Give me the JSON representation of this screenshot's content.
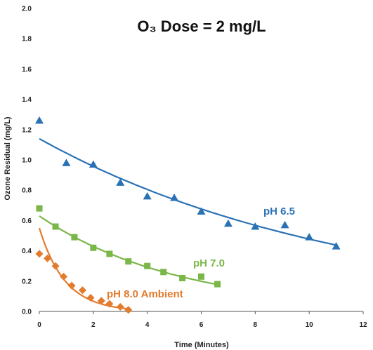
{
  "chart_data": {
    "type": "scatter",
    "title": "O₃ Dose = 2 mg/L",
    "xlabel": "Time (Minutes)",
    "ylabel": "Ozone Residual (mg/L)",
    "xlim": [
      0,
      12
    ],
    "ylim": [
      0,
      2.0
    ],
    "xticks": [
      "0",
      "2",
      "4",
      "6",
      "8",
      "10",
      "12"
    ],
    "yticks": [
      "0.0",
      "0.2",
      "0.4",
      "0.6",
      "0.8",
      "1.0",
      "1.2",
      "1.4",
      "1.6",
      "1.8",
      "2.0"
    ],
    "grid": false,
    "legend": "inline labels",
    "series": [
      {
        "name": "pH 6.5",
        "color": "#2a72b5",
        "marker": "triangle",
        "points": [
          [
            0,
            1.26
          ],
          [
            1,
            0.98
          ],
          [
            2,
            0.97
          ],
          [
            3,
            0.85
          ],
          [
            4,
            0.76
          ],
          [
            5,
            0.75
          ],
          [
            6,
            0.66
          ],
          [
            7,
            0.58
          ],
          [
            8,
            0.56
          ],
          [
            9.1,
            0.57
          ],
          [
            10,
            0.49
          ],
          [
            11,
            0.43
          ]
        ],
        "fit": {
          "model": "exponential",
          "start": 1.14,
          "rate": 0.087,
          "x_from": 0,
          "x_to": 11
        }
      },
      {
        "name": "pH 7.0",
        "color": "#7ab648",
        "marker": "square",
        "points": [
          [
            0,
            0.68
          ],
          [
            0.6,
            0.56
          ],
          [
            1.3,
            0.49
          ],
          [
            2,
            0.42
          ],
          [
            2.6,
            0.38
          ],
          [
            3.3,
            0.33
          ],
          [
            4,
            0.3
          ],
          [
            4.6,
            0.26
          ],
          [
            5.3,
            0.22
          ],
          [
            6,
            0.23
          ],
          [
            6.6,
            0.18
          ]
        ],
        "fit": {
          "model": "exponential",
          "start": 0.63,
          "rate": 0.192,
          "x_from": 0,
          "x_to": 6.6
        }
      },
      {
        "name": "pH 8.0 Ambient",
        "color": "#e37b2c",
        "marker": "diamond",
        "points": [
          [
            0,
            0.38
          ],
          [
            0.3,
            0.35
          ],
          [
            0.6,
            0.3
          ],
          [
            0.9,
            0.23
          ],
          [
            1.2,
            0.17
          ],
          [
            1.6,
            0.14
          ],
          [
            1.9,
            0.09
          ],
          [
            2.3,
            0.07
          ],
          [
            2.6,
            0.05
          ],
          [
            3,
            0.03
          ],
          [
            3.3,
            0.01
          ]
        ],
        "fit": {
          "model": "exponential",
          "start": 0.55,
          "rate": 1.05,
          "x_from": 0,
          "x_to": 3.3
        }
      }
    ]
  }
}
